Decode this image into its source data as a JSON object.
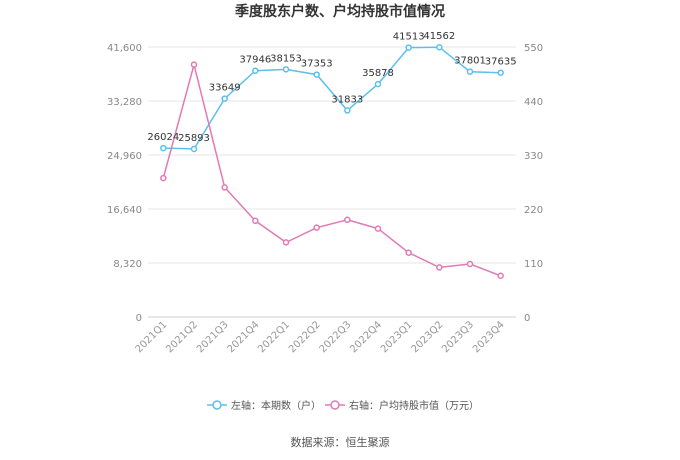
{
  "chart_data": {
    "type": "line",
    "title": "季度股东户数、户均持股市值情况",
    "categories": [
      "2021Q1",
      "2021Q2",
      "2021Q3",
      "2021Q4",
      "2022Q1",
      "2022Q2",
      "2022Q3",
      "2022Q4",
      "2023Q1",
      "2023Q2",
      "2023Q3",
      "2023Q4"
    ],
    "left_axis": {
      "min": 0,
      "max": 41600,
      "ticks": [
        "0",
        "8,320",
        "16,640",
        "24,960",
        "33,280",
        "41,600"
      ],
      "tick_values": [
        0,
        8320,
        16640,
        24960,
        33280,
        41600
      ]
    },
    "right_axis": {
      "min": 0,
      "max": 550,
      "ticks": [
        "0",
        "110",
        "220",
        "330",
        "440",
        "550"
      ],
      "tick_values": [
        0,
        110,
        220,
        330,
        440,
        550
      ]
    },
    "series": [
      {
        "name": "左轴：本期数（户）",
        "axis": "left",
        "color": "#5bc0eb",
        "values": [
          26024,
          25893,
          33649,
          37946,
          38153,
          37353,
          31833,
          35878,
          41513,
          41562,
          37801,
          37635
        ],
        "labels": [
          "26024",
          "25893",
          "33649",
          "37946",
          "38153",
          "37353",
          "31833",
          "35878",
          "41513",
          "41562",
          "37801",
          "37635"
        ]
      },
      {
        "name": "右轴：户均持股市值（万元）",
        "axis": "right",
        "color": "#e07ab5",
        "values": [
          283,
          514,
          264,
          196,
          152,
          182,
          198,
          180,
          131,
          101,
          108,
          84
        ]
      }
    ],
    "grid": true,
    "legend_position": "bottom"
  },
  "source": "数据来源：恒生聚源"
}
